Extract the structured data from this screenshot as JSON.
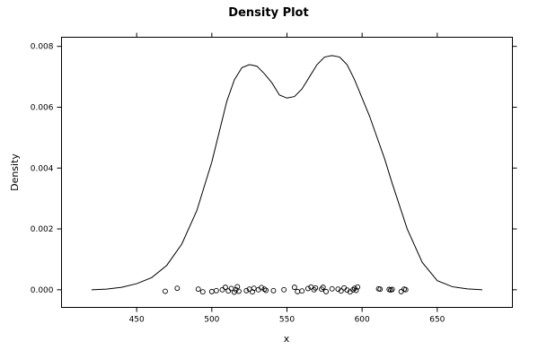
{
  "chart_data": {
    "type": "line",
    "title": "Density Plot",
    "xlabel": "x",
    "ylabel": "Density",
    "xlim": [
      400,
      700
    ],
    "ylim": [
      -0.00058,
      0.0083
    ],
    "grid": false,
    "x_ticks": [
      450,
      500,
      550,
      600,
      650
    ],
    "x_tick_labels": [
      "450",
      "500",
      "550",
      "600",
      "650"
    ],
    "y_ticks": [
      0,
      0.002,
      0.004,
      0.006,
      0.008
    ],
    "y_tick_labels": [
      "0.000",
      "0.002",
      "0.004",
      "0.006",
      "0.008"
    ],
    "series": [
      {
        "x": [
          420,
          430,
          440,
          450,
          460,
          470,
          480,
          490,
          500,
          505,
          510,
          515,
          520,
          525,
          530,
          535,
          540,
          545,
          550,
          555,
          560,
          565,
          570,
          575,
          580,
          585,
          590,
          595,
          600,
          605,
          610,
          615,
          620,
          630,
          640,
          650,
          660,
          670,
          680
        ],
        "y": [
          0.0,
          2e-05,
          8e-05,
          0.0002,
          0.0004,
          0.0008,
          0.0015,
          0.0026,
          0.0042,
          0.0052,
          0.0062,
          0.0069,
          0.0073,
          0.0074,
          0.00735,
          0.0071,
          0.0068,
          0.0064,
          0.0063,
          0.00635,
          0.0066,
          0.007,
          0.0074,
          0.00765,
          0.0077,
          0.00765,
          0.0074,
          0.0069,
          0.0063,
          0.0057,
          0.005,
          0.0043,
          0.0035,
          0.002,
          0.0009,
          0.0003,
          0.0001,
          3e-05,
          0.0
        ]
      }
    ],
    "rug": {
      "x": [
        469,
        477,
        491,
        494,
        500,
        503,
        507,
        509,
        511,
        513,
        515,
        516,
        517,
        518,
        523,
        525,
        527,
        528,
        531,
        533,
        535,
        536,
        541,
        548,
        555,
        557,
        560,
        564,
        566,
        568,
        569,
        573,
        574,
        576,
        580,
        584,
        586,
        588,
        590,
        592,
        594,
        595,
        596,
        597,
        611,
        612,
        618,
        619,
        620,
        626,
        628,
        629
      ],
      "y": [
        -5e-05,
        5e-05,
        2e-05,
        -7e-05,
        -6e-05,
        -3e-05,
        0.0,
        8e-05,
        -4e-05,
        4e-05,
        -8e-05,
        0.0,
        0.0001,
        -5e-05,
        -3e-05,
        2e-05,
        -7e-05,
        5e-05,
        0.0,
        7e-05,
        2e-05,
        -2e-05,
        -3e-05,
        0.0,
        8e-05,
        -6e-05,
        -4e-05,
        4e-05,
        9e-05,
        0.0,
        6e-05,
        2e-05,
        8e-05,
        -6e-05,
        3e-05,
        2e-05,
        -4e-05,
        6e-05,
        -1e-05,
        -7e-05,
        0.0,
        5e-05,
        -2e-05,
        9e-05,
        3e-05,
        2e-05,
        1e-05,
        -1e-05,
        1e-05,
        -6e-05,
        2e-05,
        0.0
      ]
    }
  }
}
